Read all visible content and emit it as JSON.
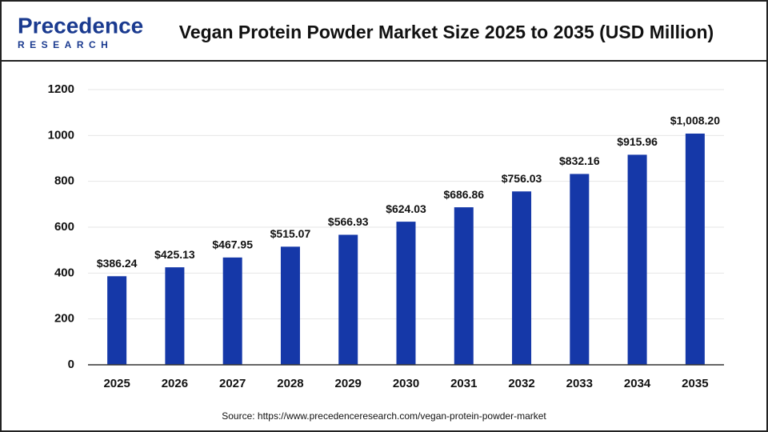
{
  "chart_data": {
    "type": "bar",
    "title": "Vegan Protein Powder Market Size 2025 to 2035 (USD Million)",
    "logo": "Precedence",
    "logo_sub": "RESEARCH",
    "source": "Source: https://www.precedenceresearch.com/vegan-protein-powder-market",
    "categories": [
      "2025",
      "2026",
      "2027",
      "2028",
      "2029",
      "2030",
      "2031",
      "2032",
      "2033",
      "2034",
      "2035"
    ],
    "values": [
      386.24,
      425.13,
      467.95,
      515.07,
      566.93,
      624.03,
      686.86,
      756.03,
      832.16,
      915.96,
      1008.2
    ],
    "value_labels": [
      "$386.24",
      "$425.13",
      "$467.95",
      "$515.07",
      "$566.93",
      "$624.03",
      "$686.86",
      "$756.03",
      "$832.16",
      "$915.96",
      "$1,008.20"
    ],
    "color": "#1538a8",
    "ylim": [
      0,
      1200
    ],
    "yticks": [
      0,
      200,
      400,
      600,
      800,
      1000,
      1200
    ],
    "grid": true
  }
}
